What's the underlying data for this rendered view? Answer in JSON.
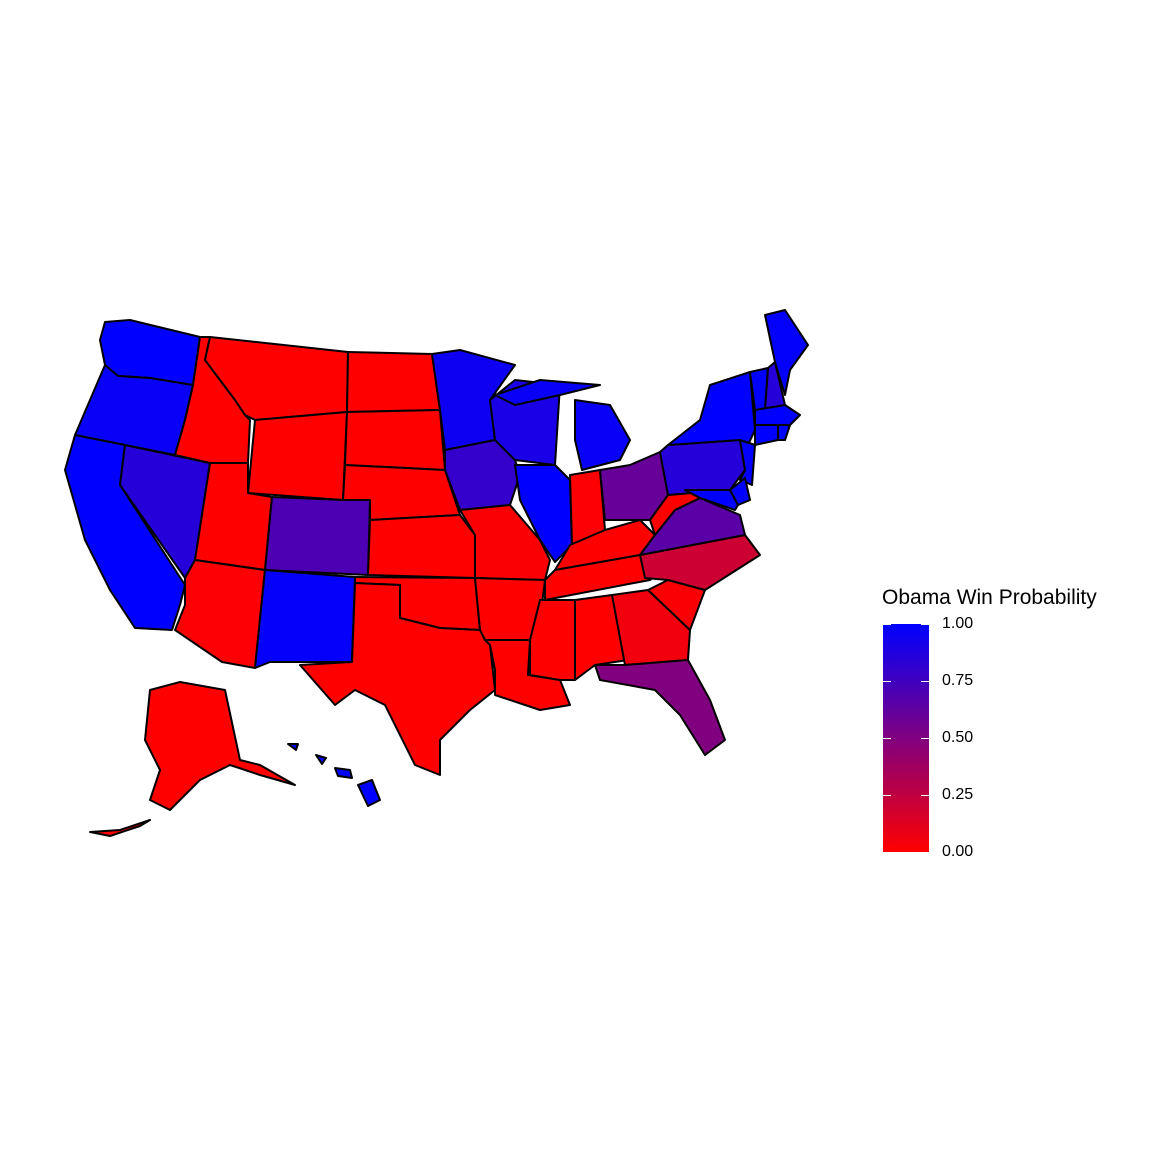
{
  "legend": {
    "title": "Obama Win Probability",
    "ticks": [
      "0.00",
      "0.25",
      "0.50",
      "0.75",
      "1.00"
    ],
    "tick_values": [
      0,
      0.25,
      0.5,
      0.75,
      1
    ],
    "low_color": "#ff0000",
    "high_color": "#0000ff"
  },
  "states": [
    {
      "id": "WA",
      "p": 1.0
    },
    {
      "id": "OR",
      "p": 0.97
    },
    {
      "id": "CA",
      "p": 1.0
    },
    {
      "id": "NV",
      "p": 0.85
    },
    {
      "id": "ID",
      "p": 0.0
    },
    {
      "id": "MT",
      "p": 0.0
    },
    {
      "id": "WY",
      "p": 0.0
    },
    {
      "id": "UT",
      "p": 0.0
    },
    {
      "id": "AZ",
      "p": 0.01
    },
    {
      "id": "CO",
      "p": 0.7
    },
    {
      "id": "NM",
      "p": 0.98
    },
    {
      "id": "ND",
      "p": 0.0
    },
    {
      "id": "SD",
      "p": 0.0
    },
    {
      "id": "NE",
      "p": 0.0
    },
    {
      "id": "KS",
      "p": 0.0
    },
    {
      "id": "OK",
      "p": 0.0
    },
    {
      "id": "TX",
      "p": 0.0
    },
    {
      "id": "MN",
      "p": 0.95
    },
    {
      "id": "IA",
      "p": 0.8
    },
    {
      "id": "MO",
      "p": 0.02
    },
    {
      "id": "AR",
      "p": 0.0
    },
    {
      "id": "LA",
      "p": 0.0
    },
    {
      "id": "WI",
      "p": 0.9
    },
    {
      "id": "IL",
      "p": 1.0
    },
    {
      "id": "MI",
      "p": 0.97
    },
    {
      "id": "IN",
      "p": 0.01
    },
    {
      "id": "OH",
      "p": 0.6
    },
    {
      "id": "KY",
      "p": 0.0
    },
    {
      "id": "TN",
      "p": 0.0
    },
    {
      "id": "MS",
      "p": 0.0
    },
    {
      "id": "AL",
      "p": 0.0
    },
    {
      "id": "GA",
      "p": 0.05
    },
    {
      "id": "SC",
      "p": 0.02
    },
    {
      "id": "NC",
      "p": 0.2
    },
    {
      "id": "VA",
      "p": 0.65
    },
    {
      "id": "WV",
      "p": 0.0
    },
    {
      "id": "PA",
      "p": 0.85
    },
    {
      "id": "NY",
      "p": 1.0
    },
    {
      "id": "NJ",
      "p": 0.99
    },
    {
      "id": "MD",
      "p": 1.0
    },
    {
      "id": "DE",
      "p": 1.0
    },
    {
      "id": "FL",
      "p": 0.5
    },
    {
      "id": "VT",
      "p": 1.0
    },
    {
      "id": "NH",
      "p": 0.85
    },
    {
      "id": "ME",
      "p": 0.99
    },
    {
      "id": "MA",
      "p": 1.0
    },
    {
      "id": "CT",
      "p": 1.0
    },
    {
      "id": "RI",
      "p": 1.0
    },
    {
      "id": "AK",
      "p": 0.0
    },
    {
      "id": "HI",
      "p": 1.0
    }
  ]
}
